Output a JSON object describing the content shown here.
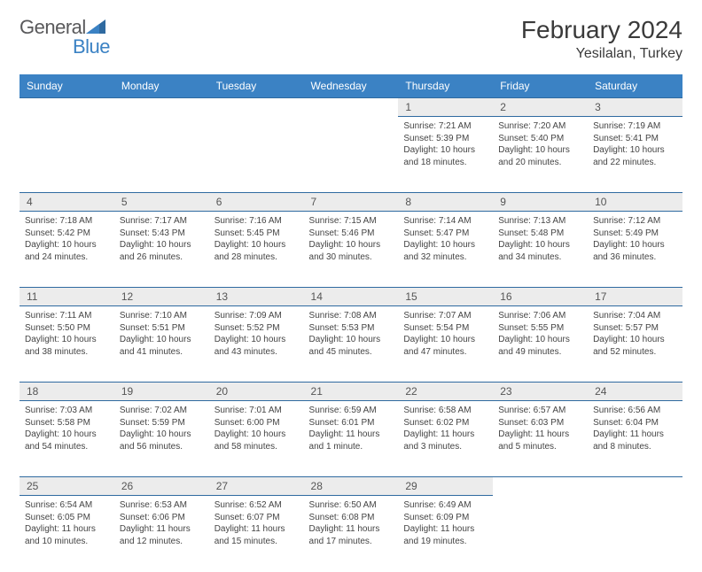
{
  "brand": {
    "part1": "General",
    "part2": "Blue"
  },
  "header": {
    "title": "February 2024",
    "location": "Yesilalan, Turkey"
  },
  "dayNames": [
    "Sunday",
    "Monday",
    "Tuesday",
    "Wednesday",
    "Thursday",
    "Friday",
    "Saturday"
  ],
  "colors": {
    "headerBg": "#3b82c4",
    "ruleLine": "#2f6aa0",
    "grayBand": "#ececec"
  },
  "weeks": [
    [
      null,
      null,
      null,
      null,
      {
        "n": "1",
        "sr": "Sunrise: 7:21 AM",
        "ss": "Sunset: 5:39 PM",
        "d1": "Daylight: 10 hours",
        "d2": "and 18 minutes."
      },
      {
        "n": "2",
        "sr": "Sunrise: 7:20 AM",
        "ss": "Sunset: 5:40 PM",
        "d1": "Daylight: 10 hours",
        "d2": "and 20 minutes."
      },
      {
        "n": "3",
        "sr": "Sunrise: 7:19 AM",
        "ss": "Sunset: 5:41 PM",
        "d1": "Daylight: 10 hours",
        "d2": "and 22 minutes."
      }
    ],
    [
      {
        "n": "4",
        "sr": "Sunrise: 7:18 AM",
        "ss": "Sunset: 5:42 PM",
        "d1": "Daylight: 10 hours",
        "d2": "and 24 minutes."
      },
      {
        "n": "5",
        "sr": "Sunrise: 7:17 AM",
        "ss": "Sunset: 5:43 PM",
        "d1": "Daylight: 10 hours",
        "d2": "and 26 minutes."
      },
      {
        "n": "6",
        "sr": "Sunrise: 7:16 AM",
        "ss": "Sunset: 5:45 PM",
        "d1": "Daylight: 10 hours",
        "d2": "and 28 minutes."
      },
      {
        "n": "7",
        "sr": "Sunrise: 7:15 AM",
        "ss": "Sunset: 5:46 PM",
        "d1": "Daylight: 10 hours",
        "d2": "and 30 minutes."
      },
      {
        "n": "8",
        "sr": "Sunrise: 7:14 AM",
        "ss": "Sunset: 5:47 PM",
        "d1": "Daylight: 10 hours",
        "d2": "and 32 minutes."
      },
      {
        "n": "9",
        "sr": "Sunrise: 7:13 AM",
        "ss": "Sunset: 5:48 PM",
        "d1": "Daylight: 10 hours",
        "d2": "and 34 minutes."
      },
      {
        "n": "10",
        "sr": "Sunrise: 7:12 AM",
        "ss": "Sunset: 5:49 PM",
        "d1": "Daylight: 10 hours",
        "d2": "and 36 minutes."
      }
    ],
    [
      {
        "n": "11",
        "sr": "Sunrise: 7:11 AM",
        "ss": "Sunset: 5:50 PM",
        "d1": "Daylight: 10 hours",
        "d2": "and 38 minutes."
      },
      {
        "n": "12",
        "sr": "Sunrise: 7:10 AM",
        "ss": "Sunset: 5:51 PM",
        "d1": "Daylight: 10 hours",
        "d2": "and 41 minutes."
      },
      {
        "n": "13",
        "sr": "Sunrise: 7:09 AM",
        "ss": "Sunset: 5:52 PM",
        "d1": "Daylight: 10 hours",
        "d2": "and 43 minutes."
      },
      {
        "n": "14",
        "sr": "Sunrise: 7:08 AM",
        "ss": "Sunset: 5:53 PM",
        "d1": "Daylight: 10 hours",
        "d2": "and 45 minutes."
      },
      {
        "n": "15",
        "sr": "Sunrise: 7:07 AM",
        "ss": "Sunset: 5:54 PM",
        "d1": "Daylight: 10 hours",
        "d2": "and 47 minutes."
      },
      {
        "n": "16",
        "sr": "Sunrise: 7:06 AM",
        "ss": "Sunset: 5:55 PM",
        "d1": "Daylight: 10 hours",
        "d2": "and 49 minutes."
      },
      {
        "n": "17",
        "sr": "Sunrise: 7:04 AM",
        "ss": "Sunset: 5:57 PM",
        "d1": "Daylight: 10 hours",
        "d2": "and 52 minutes."
      }
    ],
    [
      {
        "n": "18",
        "sr": "Sunrise: 7:03 AM",
        "ss": "Sunset: 5:58 PM",
        "d1": "Daylight: 10 hours",
        "d2": "and 54 minutes."
      },
      {
        "n": "19",
        "sr": "Sunrise: 7:02 AM",
        "ss": "Sunset: 5:59 PM",
        "d1": "Daylight: 10 hours",
        "d2": "and 56 minutes."
      },
      {
        "n": "20",
        "sr": "Sunrise: 7:01 AM",
        "ss": "Sunset: 6:00 PM",
        "d1": "Daylight: 10 hours",
        "d2": "and 58 minutes."
      },
      {
        "n": "21",
        "sr": "Sunrise: 6:59 AM",
        "ss": "Sunset: 6:01 PM",
        "d1": "Daylight: 11 hours",
        "d2": "and 1 minute."
      },
      {
        "n": "22",
        "sr": "Sunrise: 6:58 AM",
        "ss": "Sunset: 6:02 PM",
        "d1": "Daylight: 11 hours",
        "d2": "and 3 minutes."
      },
      {
        "n": "23",
        "sr": "Sunrise: 6:57 AM",
        "ss": "Sunset: 6:03 PM",
        "d1": "Daylight: 11 hours",
        "d2": "and 5 minutes."
      },
      {
        "n": "24",
        "sr": "Sunrise: 6:56 AM",
        "ss": "Sunset: 6:04 PM",
        "d1": "Daylight: 11 hours",
        "d2": "and 8 minutes."
      }
    ],
    [
      {
        "n": "25",
        "sr": "Sunrise: 6:54 AM",
        "ss": "Sunset: 6:05 PM",
        "d1": "Daylight: 11 hours",
        "d2": "and 10 minutes."
      },
      {
        "n": "26",
        "sr": "Sunrise: 6:53 AM",
        "ss": "Sunset: 6:06 PM",
        "d1": "Daylight: 11 hours",
        "d2": "and 12 minutes."
      },
      {
        "n": "27",
        "sr": "Sunrise: 6:52 AM",
        "ss": "Sunset: 6:07 PM",
        "d1": "Daylight: 11 hours",
        "d2": "and 15 minutes."
      },
      {
        "n": "28",
        "sr": "Sunrise: 6:50 AM",
        "ss": "Sunset: 6:08 PM",
        "d1": "Daylight: 11 hours",
        "d2": "and 17 minutes."
      },
      {
        "n": "29",
        "sr": "Sunrise: 6:49 AM",
        "ss": "Sunset: 6:09 PM",
        "d1": "Daylight: 11 hours",
        "d2": "and 19 minutes."
      },
      null,
      null
    ]
  ]
}
